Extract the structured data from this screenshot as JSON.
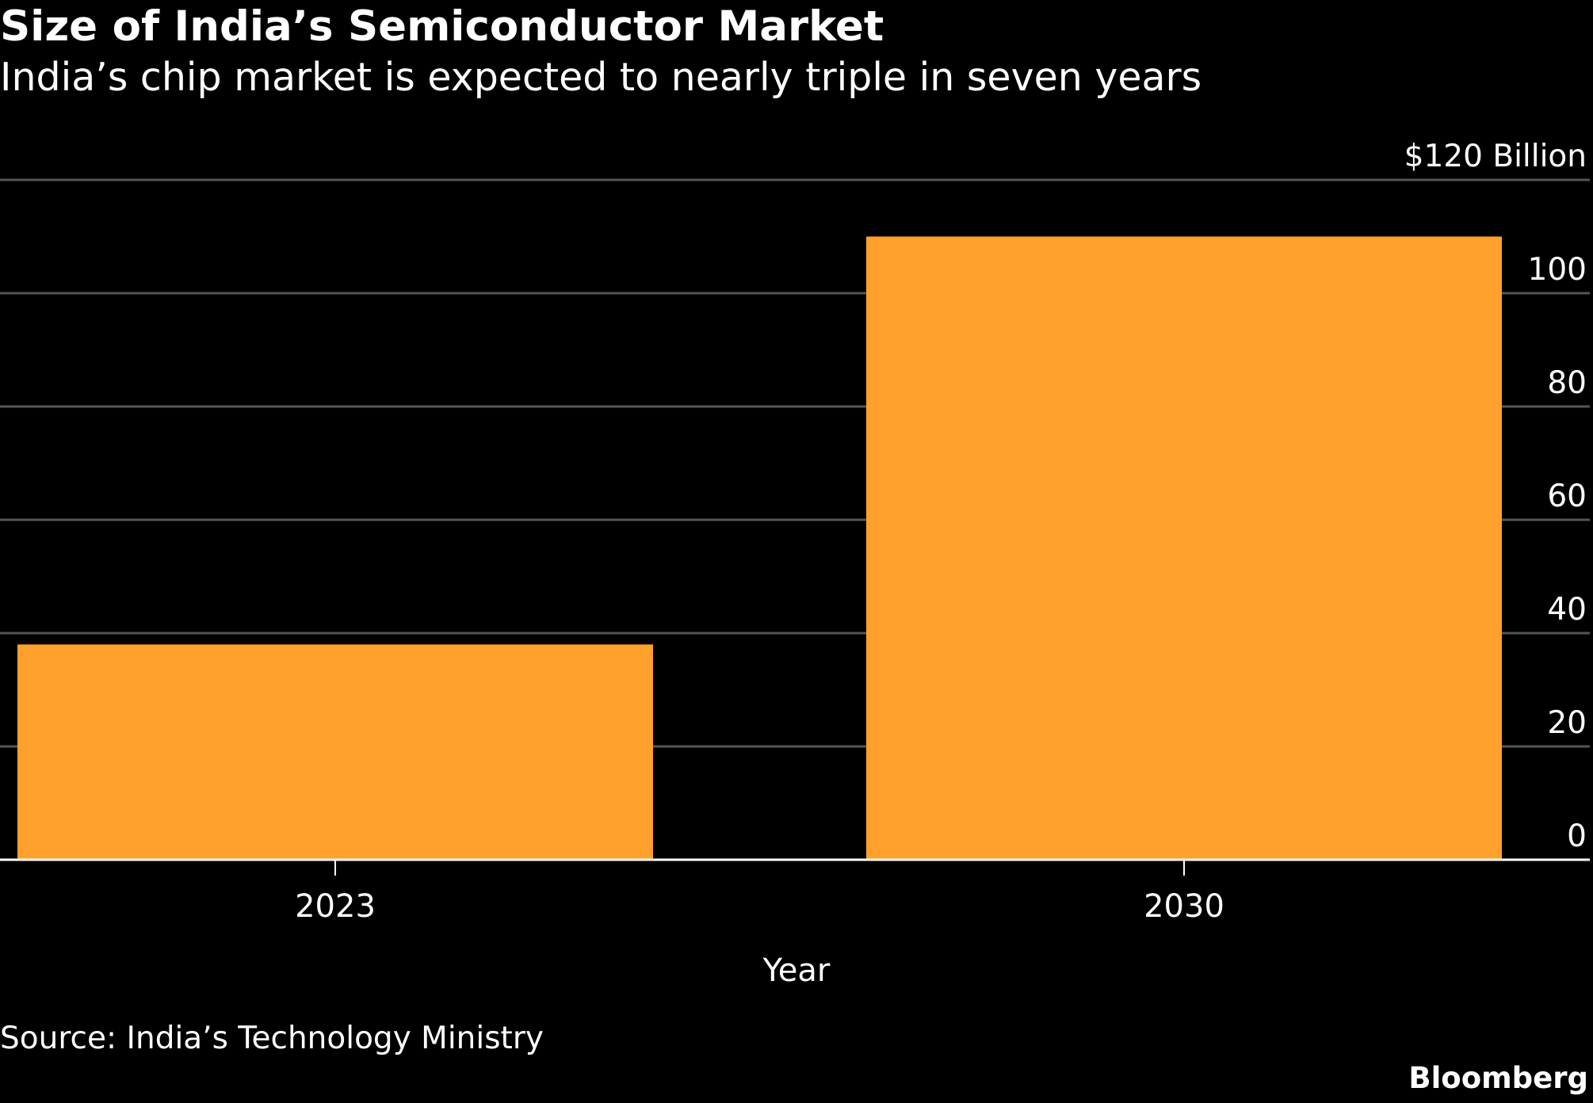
{
  "header": {
    "title": "Size of India’s Semiconductor Market",
    "subtitle": "India’s chip market is expected to nearly triple in seven years"
  },
  "footer": {
    "source": "Source: India’s Technology Ministry",
    "brand": "Bloomberg"
  },
  "colors": {
    "background": "#000000",
    "bar": "#FFA02C",
    "gridline": "#555555",
    "baseline": "#ffffff",
    "text": "#ffffff"
  },
  "chart_data": {
    "type": "bar",
    "title": "Size of India’s Semiconductor Market",
    "subtitle": "India’s chip market is expected to nearly triple in seven years",
    "xlabel": "Year",
    "ylabel": "",
    "categories": [
      "2023",
      "2030"
    ],
    "series": [
      {
        "values": [
          38,
          110
        ]
      }
    ],
    "ylim": [
      0,
      120
    ],
    "yticks": [
      0,
      20,
      40,
      60,
      80,
      100,
      120
    ],
    "ytick_labels": [
      "0",
      "20",
      "40",
      "60",
      "80",
      "100",
      "$120 Billion"
    ],
    "y_axis_side": "right",
    "grid": true,
    "legend": "none"
  }
}
